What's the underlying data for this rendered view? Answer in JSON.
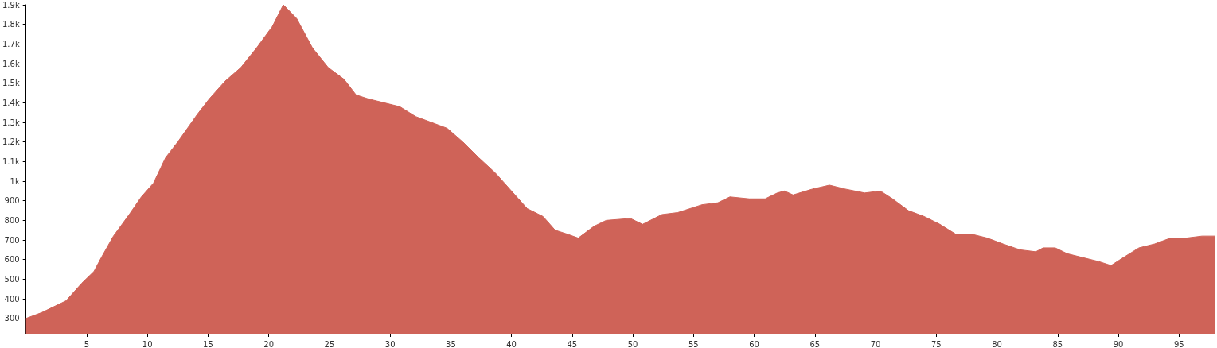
{
  "chart_data": {
    "type": "area",
    "color": "#cf6358",
    "marker": "none",
    "x": [
      0,
      1.3,
      3.3,
      4.6,
      5.6,
      6.2,
      7.2,
      8.5,
      9.5,
      10.5,
      11.5,
      12.5,
      14.1,
      15.1,
      16.4,
      17.7,
      19.0,
      20.3,
      21.2,
      22.3,
      23.6,
      24.9,
      26.2,
      27.2,
      28.2,
      29.5,
      30.8,
      32.1,
      33.4,
      34.7,
      36.0,
      37.3,
      38.7,
      40.0,
      41.3,
      42.6,
      43.6,
      44.6,
      45.5,
      46.8,
      47.8,
      49.8,
      50.8,
      52.4,
      53.7,
      55.7,
      57.0,
      58.0,
      59.6,
      60.9,
      61.9,
      62.5,
      63.2,
      64.8,
      66.2,
      67.5,
      69.1,
      70.4,
      71.4,
      72.7,
      74.0,
      75.3,
      76.6,
      77.9,
      79.2,
      80.5,
      81.9,
      83.2,
      83.8,
      84.8,
      85.8,
      87.1,
      88.4,
      89.4,
      90.4,
      91.7,
      93.0,
      94.3,
      95.6,
      96.9,
      98
    ],
    "values": [
      300,
      330,
      390,
      480,
      540,
      610,
      720,
      830,
      920,
      990,
      1120,
      1200,
      1340,
      1420,
      1510,
      1580,
      1680,
      1790,
      1900,
      1830,
      1680,
      1580,
      1520,
      1440,
      1420,
      1400,
      1380,
      1330,
      1300,
      1270,
      1200,
      1120,
      1040,
      950,
      860,
      820,
      750,
      730,
      710,
      770,
      800,
      810,
      780,
      830,
      840,
      880,
      890,
      920,
      910,
      910,
      940,
      950,
      930,
      960,
      980,
      960,
      940,
      950,
      910,
      850,
      820,
      780,
      730,
      730,
      710,
      680,
      650,
      640,
      660,
      660,
      630,
      610,
      590,
      570,
      610,
      660,
      680,
      710,
      710,
      720,
      720
    ],
    "xlim": [
      0,
      98
    ],
    "xticks": [
      5,
      10,
      15,
      20,
      25,
      30,
      35,
      40,
      45,
      50,
      55,
      60,
      65,
      70,
      75,
      80,
      85,
      90,
      95
    ],
    "ylim": [
      222,
      1900
    ],
    "yticks": [
      300,
      400,
      500,
      600,
      700,
      800,
      900,
      {
        "value": 1000,
        "label": "1k"
      },
      {
        "value": 1100,
        "label": "1.1k"
      },
      {
        "value": 1200,
        "label": "1.2k"
      },
      {
        "value": 1300,
        "label": "1.3k"
      },
      {
        "value": 1400,
        "label": "1.4k"
      },
      {
        "value": 1500,
        "label": "1.5k"
      },
      {
        "value": 1600,
        "label": "1.6k"
      },
      {
        "value": 1700,
        "label": "1.7k"
      },
      {
        "value": 1800,
        "label": "1.8k"
      },
      {
        "value": 1900,
        "label": "1.9k"
      }
    ]
  }
}
